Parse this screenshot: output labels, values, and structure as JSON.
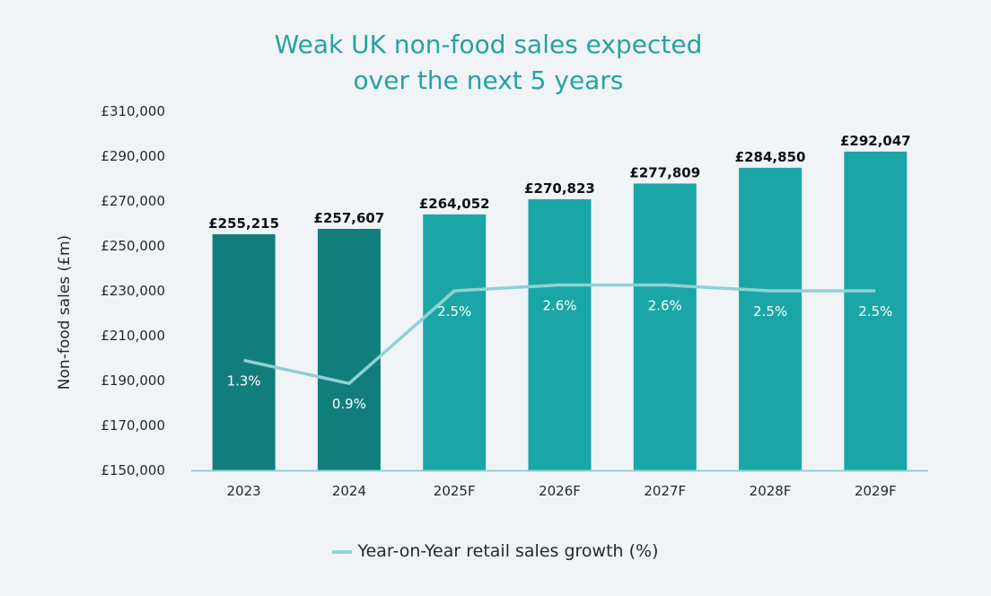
{
  "chart_data": {
    "type": "bar",
    "title_lines": [
      "Weak UK non-food sales expected",
      "over the next 5 years"
    ],
    "ylabel": "Non-food sales (£m)",
    "xlabel": "",
    "categories": [
      "2023",
      "2024",
      "2025F",
      "2026F",
      "2027F",
      "2028F",
      "2029F"
    ],
    "ylim": [
      150000,
      310000
    ],
    "yticks": [
      150000,
      170000,
      190000,
      210000,
      230000,
      250000,
      270000,
      290000,
      310000
    ],
    "ytick_labels": [
      "£150,000",
      "£170,000",
      "£190,000",
      "£210,000",
      "£230,000",
      "£250,000",
      "£270,000",
      "£290,000",
      "£310,000"
    ],
    "bar_series": {
      "values": [
        255215,
        257607,
        264052,
        270823,
        277809,
        284850,
        292047
      ],
      "labels": [
        "£255,215",
        "£257,607",
        "£264,052",
        "£270,823",
        "£277,809",
        "£284,850",
        "£292,047"
      ],
      "colors": [
        "#127e7b",
        "#127e7b",
        "#1aa6a6",
        "#1aa6a6",
        "#1aa6a6",
        "#1aa6a6",
        "#1aa6a6"
      ]
    },
    "line_series": {
      "name": "Year-on-Year retail sales growth (%)",
      "values": [
        1.3,
        0.9,
        2.5,
        2.6,
        2.6,
        2.5,
        2.5
      ],
      "labels": [
        "1.3%",
        "0.9%",
        "2.5%",
        "2.6%",
        "2.6%",
        "2.5%",
        "2.5%"
      ],
      "color": "#8fd1d4"
    },
    "grid": false,
    "legend_position": "bottom-center"
  },
  "colors": {
    "title": "#27a29f",
    "bar_actual": "#127e7b",
    "bar_forecast": "#1aa6a6",
    "growth_line": "#8fd1d4",
    "axis_line": "#8fd1d4",
    "background": "#f0f4f7"
  }
}
